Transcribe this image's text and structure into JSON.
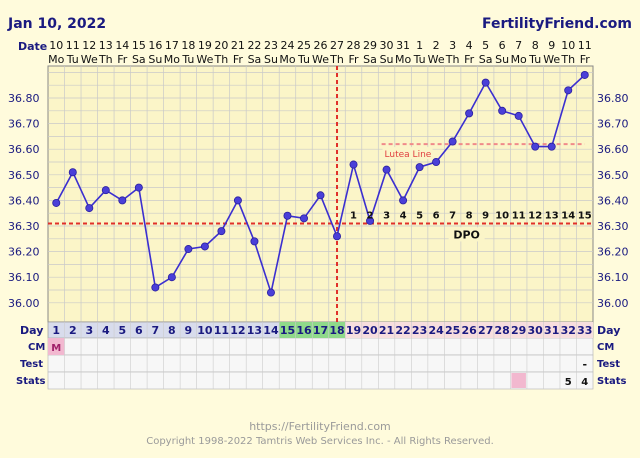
{
  "header": {
    "date": "Jan 10, 2022",
    "site": "FertilityFriend.com"
  },
  "row_labels": {
    "date": "Date",
    "day": "Day",
    "cm": "CM",
    "test": "Test",
    "stats": "Stats"
  },
  "dates": [
    "10",
    "11",
    "12",
    "13",
    "14",
    "15",
    "16",
    "17",
    "18",
    "19",
    "20",
    "21",
    "22",
    "23",
    "24",
    "25",
    "26",
    "27",
    "28",
    "29",
    "30",
    "31",
    "1",
    "2",
    "3",
    "4",
    "5",
    "6",
    "7",
    "8",
    "9",
    "10",
    "11"
  ],
  "weekdays": [
    "Mo",
    "Tu",
    "We",
    "Th",
    "Fr",
    "Sa",
    "Su",
    "Mo",
    "Tu",
    "We",
    "Th",
    "Fr",
    "Sa",
    "Su",
    "Mo",
    "Tu",
    "We",
    "Th",
    "Fr",
    "Sa",
    "Su",
    "Mo",
    "Tu",
    "We",
    "Th",
    "Fr",
    "Sa",
    "Su",
    "Mo",
    "Tu",
    "We",
    "Th",
    "Fr"
  ],
  "cycle_days": [
    "1",
    "2",
    "3",
    "4",
    "5",
    "6",
    "7",
    "8",
    "9",
    "10",
    "11",
    "12",
    "13",
    "14",
    "15",
    "16",
    "17",
    "18",
    "19",
    "20",
    "21",
    "22",
    "23",
    "24",
    "25",
    "26",
    "27",
    "28",
    "29",
    "30",
    "31",
    "32",
    "33"
  ],
  "cm": {
    "day": 1,
    "label": "M"
  },
  "fertile_days": [
    15,
    16,
    17,
    18
  ],
  "test": {
    "day": 33,
    "label": "-"
  },
  "stats": [
    {
      "day": 32,
      "label": "5"
    },
    {
      "day": 33,
      "label": "4"
    }
  ],
  "stats_highlight_day": 29,
  "dpo": {
    "label": "DPO",
    "start_day": 19,
    "numbers": [
      "1",
      "2",
      "3",
      "4",
      "5",
      "6",
      "7",
      "8",
      "9",
      "10",
      "11",
      "12",
      "13",
      "14",
      "15"
    ]
  },
  "luteal": {
    "label": "Lutea Line",
    "value": 36.62,
    "start_day": 21,
    "end_day": 33
  },
  "coverline": {
    "value": 36.31
  },
  "ovulation_day": 18,
  "chart_data": {
    "type": "line",
    "x": [
      1,
      2,
      3,
      4,
      5,
      6,
      7,
      8,
      9,
      10,
      11,
      12,
      13,
      14,
      15,
      16,
      17,
      18,
      19,
      20,
      21,
      22,
      23,
      24,
      25,
      26,
      27,
      28,
      29,
      30,
      31,
      32,
      33
    ],
    "series": [
      {
        "values": [
          36.39,
          36.51,
          36.37,
          36.44,
          36.4,
          36.45,
          36.06,
          36.1,
          36.21,
          36.22,
          36.28,
          36.4,
          36.24,
          36.04,
          36.34,
          36.33,
          36.42,
          36.26,
          36.54,
          36.32,
          36.52,
          36.4,
          36.53,
          36.55,
          36.63,
          36.74,
          36.86,
          36.75,
          36.73,
          36.61,
          36.61,
          36.83,
          36.89
        ]
      }
    ],
    "ylim": [
      35.925,
      36.925
    ],
    "y_ticks": [
      "36.00",
      "36.10",
      "36.20",
      "36.30",
      "36.40",
      "36.50",
      "36.60",
      "36.70",
      "36.80"
    ],
    "grid": true
  },
  "footer": {
    "url": "https://FertilityFriend.com",
    "copyright": "Copyright 1998-2022 Tamtris Web Services Inc. - All Rights Reserved."
  },
  "colors": {
    "line": "#3b2fd0",
    "coverline": "#e0302a",
    "fertile": "#8fd98a",
    "cm": "#f2b8d0",
    "stats_highlight": "#f2b8cf",
    "grid": "#c9c9c9",
    "text": "#1a1a80"
  }
}
